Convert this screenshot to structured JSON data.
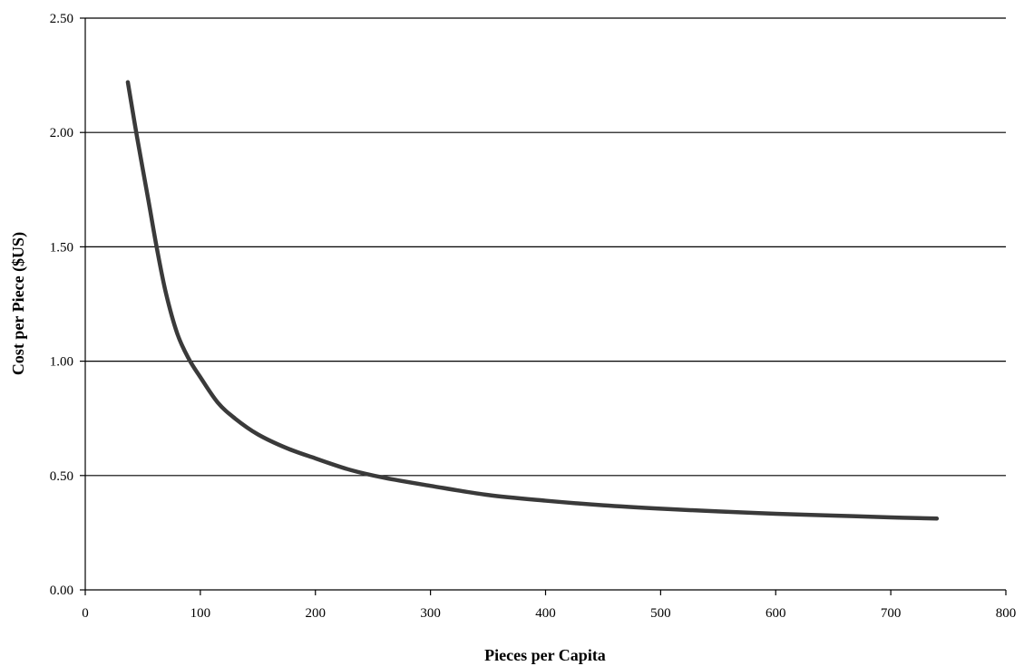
{
  "chart_data": {
    "type": "line",
    "title": "",
    "xlabel": "Pieces per Capita",
    "ylabel": "Cost per Piece ($US)",
    "xlim": [
      0,
      800
    ],
    "ylim": [
      0,
      2.5
    ],
    "x_ticks": [
      "0",
      "100",
      "200",
      "300",
      "400",
      "500",
      "600",
      "700",
      "800"
    ],
    "y_ticks": [
      "0.00",
      "0.50",
      "1.00",
      "1.50",
      "2.00",
      "2.50"
    ],
    "grid": "horizontal",
    "legend": "none",
    "line_color": "#3a3a3a",
    "series": [
      {
        "x": [
          37,
          45,
          55,
          62,
          70,
          80,
          90,
          100,
          115,
          130,
          150,
          175,
          200,
          230,
          260,
          300,
          350,
          400,
          450,
          500,
          550,
          600,
          650,
          700,
          740
        ],
        "y": [
          2.22,
          1.98,
          1.7,
          1.5,
          1.3,
          1.12,
          1.01,
          0.93,
          0.82,
          0.75,
          0.68,
          0.62,
          0.575,
          0.525,
          0.49,
          0.455,
          0.415,
          0.39,
          0.37,
          0.355,
          0.343,
          0.333,
          0.325,
          0.317,
          0.312
        ]
      }
    ]
  }
}
